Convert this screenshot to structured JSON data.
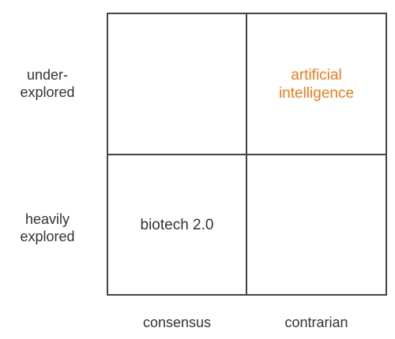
{
  "quadrant": {
    "rows": [
      {
        "label_lines": [
          "under-",
          "explored"
        ]
      },
      {
        "label_lines": [
          "heavily",
          "explored"
        ]
      }
    ],
    "columns": [
      {
        "label": "consensus"
      },
      {
        "label": "contrarian"
      }
    ],
    "cells": {
      "top_left": {
        "lines": []
      },
      "top_right": {
        "lines": [
          "artificial",
          "intelligence"
        ],
        "color": "#f07a1a"
      },
      "bottom_left": {
        "lines": [
          "biotech 2.0"
        ]
      },
      "bottom_right": {
        "lines": []
      }
    }
  }
}
